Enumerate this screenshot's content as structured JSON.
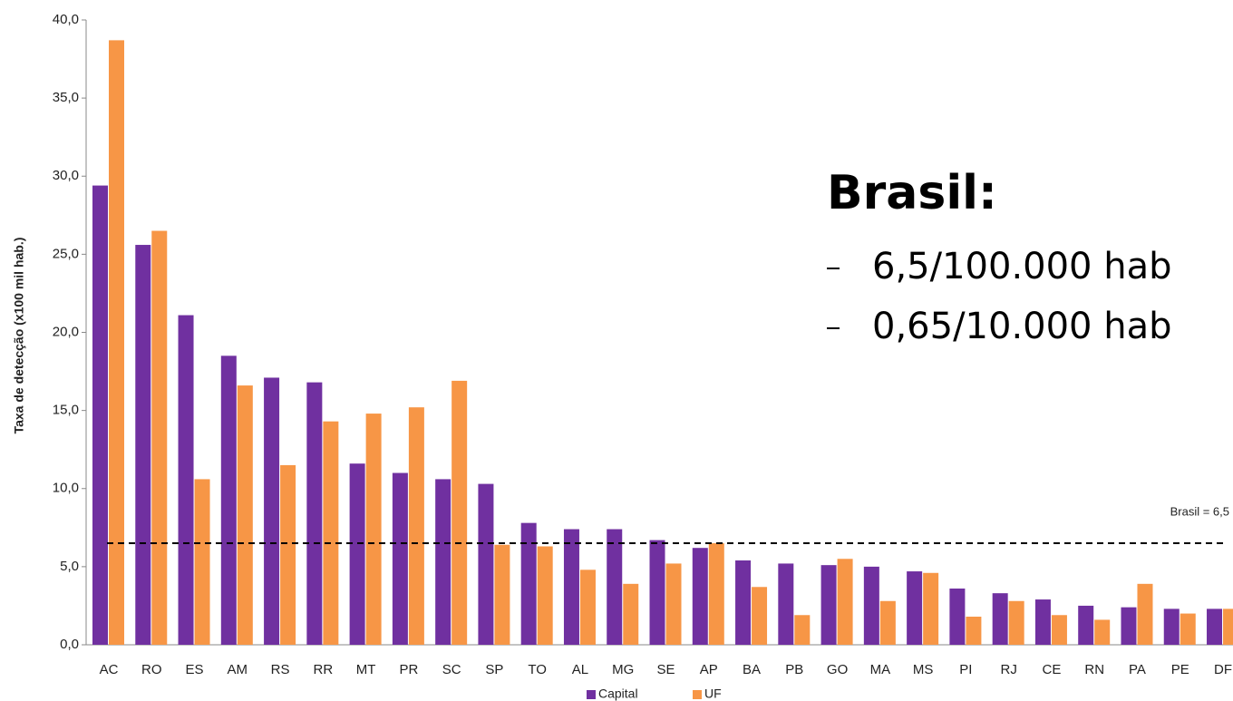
{
  "chart_data": {
    "type": "bar",
    "ylabel": "Taxa de detecção (x100 mil hab.)",
    "categories": [
      "AC",
      "RO",
      "ES",
      "AM",
      "RS",
      "RR",
      "MT",
      "PR",
      "SC",
      "SP",
      "TO",
      "AL",
      "MG",
      "SE",
      "AP",
      "BA",
      "PB",
      "GO",
      "MA",
      "MS",
      "PI",
      "RJ",
      "CE",
      "RN",
      "PA",
      "PE",
      "DF"
    ],
    "series": [
      {
        "name": "Capital",
        "color": "#7030a0",
        "values": [
          29.4,
          25.6,
          21.1,
          18.5,
          17.1,
          16.8,
          11.6,
          11.0,
          10.6,
          10.3,
          7.8,
          7.4,
          7.4,
          6.7,
          6.2,
          5.4,
          5.2,
          5.1,
          5.0,
          4.7,
          3.6,
          3.3,
          2.9,
          2.5,
          2.4,
          2.3,
          2.3
        ]
      },
      {
        "name": "UF",
        "color": "#f79646",
        "values": [
          38.7,
          26.5,
          10.6,
          16.6,
          11.5,
          14.3,
          14.8,
          15.2,
          16.9,
          6.4,
          6.3,
          4.8,
          3.9,
          5.2,
          6.5,
          3.7,
          1.9,
          5.5,
          2.8,
          4.6,
          1.8,
          2.8,
          1.9,
          1.6,
          3.9,
          2.0,
          2.3
        ]
      }
    ],
    "ylim": [
      0,
      40
    ],
    "yticks": [
      {
        "value": 0,
        "label": "0,0"
      },
      {
        "value": 5,
        "label": "5,0"
      },
      {
        "value": 10,
        "label": "10,0"
      },
      {
        "value": 15,
        "label": "15,0"
      },
      {
        "value": 20,
        "label": "20,0"
      },
      {
        "value": 25,
        "label": "25,0"
      },
      {
        "value": 30,
        "label": "30,0"
      },
      {
        "value": 35,
        "label": "35,0"
      },
      {
        "value": 40,
        "label": "40,0"
      }
    ],
    "reference_line": {
      "value": 6.5,
      "label": "Brasil = 6,5"
    },
    "legend": "bottom",
    "callout": {
      "title": "Brasil:",
      "items": [
        "6,5/100.000 hab",
        "0,65/10.000 hab"
      ]
    }
  }
}
